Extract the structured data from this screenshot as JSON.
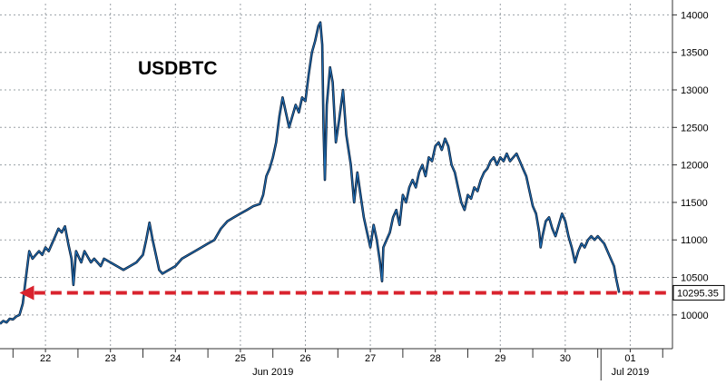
{
  "chart_data": {
    "type": "line",
    "title": "USDBTC",
    "xlabel": "",
    "ylabel": "",
    "ylim": [
      9550,
      14150
    ],
    "yticks": [
      10000,
      10500,
      11000,
      11500,
      12000,
      12500,
      13000,
      13500,
      14000
    ],
    "xlim": [
      0,
      10.35
    ],
    "day_ticks": [
      {
        "x": 0.7,
        "label": "22"
      },
      {
        "x": 1.7,
        "label": "23"
      },
      {
        "x": 2.7,
        "label": "24"
      },
      {
        "x": 3.7,
        "label": "25"
      },
      {
        "x": 4.7,
        "label": "26"
      },
      {
        "x": 5.7,
        "label": "27"
      },
      {
        "x": 6.7,
        "label": "28"
      },
      {
        "x": 7.7,
        "label": "29"
      },
      {
        "x": 8.7,
        "label": "30"
      },
      {
        "x": 9.7,
        "label": "01"
      }
    ],
    "month_labels": [
      {
        "x": 4.2,
        "label": "Jun 2019"
      },
      {
        "x": 9.7,
        "label": "Jul 2019"
      }
    ],
    "month_divider_x": 9.25,
    "grid": true,
    "last_value": 10295.35,
    "last_value_label": "10295.35",
    "accent_color": "#1f6fb5",
    "line_color": "#0a1a33",
    "support_line_color": "#d9232e",
    "support_line": {
      "y": 10295,
      "x_start": 0.3,
      "x_end": 10.25
    },
    "series": [
      {
        "points": [
          [
            0.0,
            9880
          ],
          [
            0.05,
            9920
          ],
          [
            0.1,
            9900
          ],
          [
            0.15,
            9950
          ],
          [
            0.2,
            9940
          ],
          [
            0.25,
            9980
          ],
          [
            0.3,
            10000
          ],
          [
            0.35,
            10150
          ],
          [
            0.4,
            10500
          ],
          [
            0.45,
            10850
          ],
          [
            0.5,
            10750
          ],
          [
            0.55,
            10800
          ],
          [
            0.6,
            10850
          ],
          [
            0.65,
            10800
          ],
          [
            0.7,
            10900
          ],
          [
            0.75,
            10850
          ],
          [
            0.8,
            10950
          ],
          [
            0.85,
            11050
          ],
          [
            0.9,
            11150
          ],
          [
            0.95,
            11100
          ],
          [
            1.0,
            11180
          ],
          [
            1.05,
            10950
          ],
          [
            1.1,
            10750
          ],
          [
            1.13,
            10400
          ],
          [
            1.17,
            10850
          ],
          [
            1.25,
            10700
          ],
          [
            1.3,
            10850
          ],
          [
            1.4,
            10700
          ],
          [
            1.45,
            10750
          ],
          [
            1.55,
            10650
          ],
          [
            1.6,
            10750
          ],
          [
            1.7,
            10700
          ],
          [
            1.8,
            10650
          ],
          [
            1.9,
            10600
          ],
          [
            2.0,
            10650
          ],
          [
            2.1,
            10700
          ],
          [
            2.2,
            10800
          ],
          [
            2.25,
            11000
          ],
          [
            2.3,
            11230
          ],
          [
            2.35,
            11000
          ],
          [
            2.4,
            10800
          ],
          [
            2.45,
            10600
          ],
          [
            2.5,
            10550
          ],
          [
            2.6,
            10600
          ],
          [
            2.7,
            10650
          ],
          [
            2.8,
            10750
          ],
          [
            2.9,
            10800
          ],
          [
            3.0,
            10850
          ],
          [
            3.1,
            10900
          ],
          [
            3.2,
            10950
          ],
          [
            3.3,
            11000
          ],
          [
            3.4,
            11150
          ],
          [
            3.5,
            11250
          ],
          [
            3.6,
            11300
          ],
          [
            3.7,
            11350
          ],
          [
            3.8,
            11400
          ],
          [
            3.9,
            11450
          ],
          [
            4.0,
            11480
          ],
          [
            4.05,
            11600
          ],
          [
            4.1,
            11850
          ],
          [
            4.15,
            11950
          ],
          [
            4.2,
            12100
          ],
          [
            4.25,
            12300
          ],
          [
            4.3,
            12650
          ],
          [
            4.35,
            12900
          ],
          [
            4.4,
            12700
          ],
          [
            4.45,
            12500
          ],
          [
            4.5,
            12650
          ],
          [
            4.55,
            12800
          ],
          [
            4.6,
            12700
          ],
          [
            4.65,
            12900
          ],
          [
            4.7,
            12850
          ],
          [
            4.75,
            13200
          ],
          [
            4.8,
            13500
          ],
          [
            4.85,
            13650
          ],
          [
            4.9,
            13850
          ],
          [
            4.93,
            13900
          ],
          [
            4.96,
            13600
          ],
          [
            4.98,
            12500
          ],
          [
            5.0,
            11800
          ],
          [
            5.03,
            12800
          ],
          [
            5.08,
            13300
          ],
          [
            5.12,
            13100
          ],
          [
            5.17,
            12300
          ],
          [
            5.22,
            12600
          ],
          [
            5.28,
            13000
          ],
          [
            5.33,
            12400
          ],
          [
            5.4,
            12000
          ],
          [
            5.45,
            11500
          ],
          [
            5.5,
            11900
          ],
          [
            5.55,
            11600
          ],
          [
            5.6,
            11300
          ],
          [
            5.65,
            11100
          ],
          [
            5.7,
            10900
          ],
          [
            5.75,
            11200
          ],
          [
            5.8,
            11000
          ],
          [
            5.85,
            10700
          ],
          [
            5.88,
            10450
          ],
          [
            5.9,
            10900
          ],
          [
            5.95,
            11000
          ],
          [
            6.0,
            11100
          ],
          [
            6.05,
            11300
          ],
          [
            6.1,
            11400
          ],
          [
            6.15,
            11200
          ],
          [
            6.2,
            11600
          ],
          [
            6.25,
            11500
          ],
          [
            6.3,
            11700
          ],
          [
            6.35,
            11800
          ],
          [
            6.4,
            11700
          ],
          [
            6.45,
            11900
          ],
          [
            6.5,
            12000
          ],
          [
            6.55,
            11850
          ],
          [
            6.6,
            12100
          ],
          [
            6.65,
            12050
          ],
          [
            6.7,
            12250
          ],
          [
            6.75,
            12300
          ],
          [
            6.8,
            12200
          ],
          [
            6.85,
            12350
          ],
          [
            6.9,
            12250
          ],
          [
            6.95,
            12000
          ],
          [
            7.0,
            11900
          ],
          [
            7.05,
            11700
          ],
          [
            7.1,
            11500
          ],
          [
            7.15,
            11400
          ],
          [
            7.2,
            11600
          ],
          [
            7.25,
            11550
          ],
          [
            7.3,
            11700
          ],
          [
            7.35,
            11650
          ],
          [
            7.4,
            11800
          ],
          [
            7.45,
            11900
          ],
          [
            7.5,
            11950
          ],
          [
            7.55,
            12050
          ],
          [
            7.6,
            12100
          ],
          [
            7.65,
            12000
          ],
          [
            7.7,
            12100
          ],
          [
            7.75,
            12050
          ],
          [
            7.8,
            12150
          ],
          [
            7.85,
            12050
          ],
          [
            7.9,
            12100
          ],
          [
            7.95,
            12150
          ],
          [
            8.0,
            12050
          ],
          [
            8.05,
            11950
          ],
          [
            8.1,
            11850
          ],
          [
            8.15,
            11650
          ],
          [
            8.2,
            11450
          ],
          [
            8.25,
            11350
          ],
          [
            8.3,
            11100
          ],
          [
            8.32,
            10900
          ],
          [
            8.35,
            11050
          ],
          [
            8.4,
            11250
          ],
          [
            8.45,
            11300
          ],
          [
            8.5,
            11150
          ],
          [
            8.55,
            11050
          ],
          [
            8.6,
            11200
          ],
          [
            8.65,
            11350
          ],
          [
            8.7,
            11250
          ],
          [
            8.75,
            11050
          ],
          [
            8.8,
            10900
          ],
          [
            8.85,
            10700
          ],
          [
            8.9,
            10850
          ],
          [
            8.95,
            10950
          ],
          [
            9.0,
            10900
          ],
          [
            9.05,
            11000
          ],
          [
            9.1,
            11050
          ],
          [
            9.15,
            11000
          ],
          [
            9.2,
            11050
          ],
          [
            9.25,
            11000
          ],
          [
            9.3,
            10950
          ],
          [
            9.35,
            10850
          ],
          [
            9.4,
            10750
          ],
          [
            9.45,
            10650
          ],
          [
            9.48,
            10500
          ],
          [
            9.5,
            10420
          ],
          [
            9.53,
            10295.35
          ]
        ]
      }
    ]
  }
}
